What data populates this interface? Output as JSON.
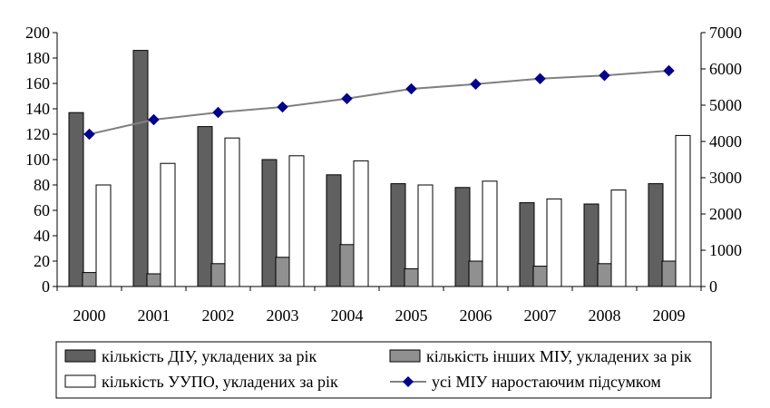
{
  "chart_data": {
    "type": "bar",
    "categories": [
      "2000",
      "2001",
      "2002",
      "2003",
      "2004",
      "2005",
      "2006",
      "2007",
      "2008",
      "2009"
    ],
    "y_left": {
      "min": 0,
      "max": 200,
      "step": 20,
      "ticks": [
        "0",
        "20",
        "40",
        "60",
        "80",
        "100",
        "120",
        "140",
        "160",
        "180",
        "200"
      ]
    },
    "y_right": {
      "min": 0,
      "max": 7000,
      "step": 1000,
      "ticks": [
        "0",
        "1000",
        "2000",
        "3000",
        "4000",
        "5000",
        "6000",
        "7000"
      ]
    },
    "series": [
      {
        "name": "кількість ДІУ, укладених за рік",
        "type": "bar",
        "axis": "left",
        "color": "#606060",
        "values": [
          137,
          186,
          126,
          100,
          88,
          81,
          78,
          66,
          65,
          81
        ]
      },
      {
        "name": "кількість інших МІУ, укладених за рік",
        "type": "bar",
        "axis": "left",
        "color": "#909090",
        "values": [
          11,
          10,
          18,
          23,
          33,
          14,
          20,
          16,
          18,
          20
        ]
      },
      {
        "name": "кількість УУПО, укладених за рік",
        "type": "bar",
        "axis": "left",
        "color": "#ffffff",
        "values": [
          80,
          97,
          117,
          103,
          99,
          80,
          83,
          69,
          76,
          119
        ]
      },
      {
        "name": "усі МІУ наростаючим підсумком",
        "type": "line",
        "axis": "right",
        "color": "#808080",
        "marker_color": "#00008B",
        "values": [
          4200,
          4600,
          4800,
          4950,
          5180,
          5450,
          5580,
          5730,
          5820,
          5950
        ]
      }
    ],
    "grid": false,
    "legend_position": "bottom"
  }
}
